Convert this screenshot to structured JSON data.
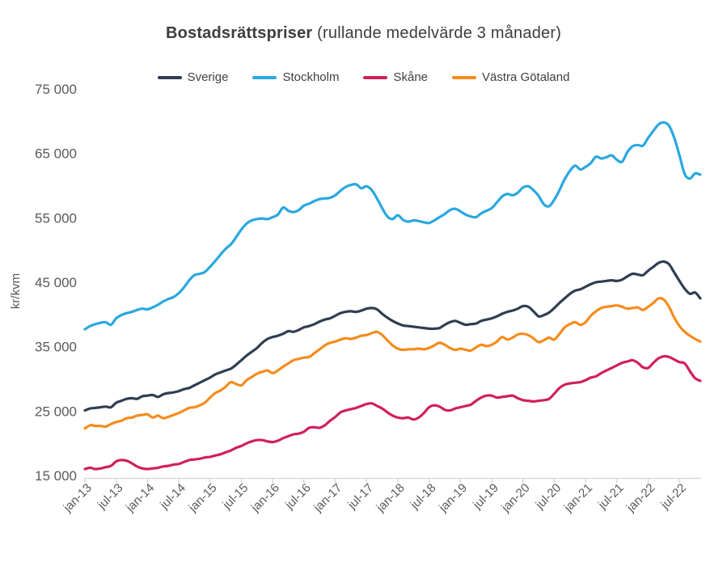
{
  "title": {
    "bold": "Bostadsrättspriser",
    "rest": " (rullande medelvärde 3 månader)"
  },
  "y_axis": {
    "title": "kr/kvm",
    "tick_labels": [
      "15 000",
      "25 000",
      "35 000",
      "45 000",
      "55 000",
      "65 000",
      "75 000"
    ],
    "tick_values": [
      15000,
      25000,
      35000,
      45000,
      55000,
      65000,
      75000
    ]
  },
  "x_axis": {
    "tick_labels": [
      "jan-13",
      "jul-13",
      "jan-14",
      "jul-14",
      "jan-15",
      "jul-15",
      "jan-16",
      "jul-16",
      "jan-17",
      "jul-17",
      "jan-18",
      "jul-18",
      "jan-19",
      "jul-19",
      "jan-20",
      "jul-20",
      "jan-21",
      "jul-21",
      "jan-22",
      "jul-22"
    ],
    "tick_step_months": 6
  },
  "colors": {
    "axis_line": "#d9d9d9",
    "tick_text": "#595959",
    "title_text": "#3d3d3d"
  },
  "chart_data": {
    "type": "line",
    "title": "Bostadsrättspriser (rullande medelvärde 3 månader)",
    "xlabel": "",
    "ylabel": "kr/kvm",
    "ylim": [
      15000,
      75000
    ],
    "x_start": "2013-01",
    "x_end": "2022-11",
    "months_count": 119,
    "legend_position": "top",
    "grid": false,
    "series": [
      {
        "name": "Sverige",
        "color": "#2f3e52",
        "values": [
          25100,
          25400,
          25500,
          25600,
          25700,
          25600,
          26300,
          26600,
          26900,
          27000,
          26900,
          27300,
          27400,
          27500,
          27200,
          27600,
          27800,
          27900,
          28100,
          28400,
          28600,
          29000,
          29400,
          29800,
          30200,
          30700,
          31000,
          31300,
          31600,
          32200,
          32900,
          33600,
          34200,
          34800,
          35600,
          36200,
          36500,
          36700,
          37000,
          37400,
          37300,
          37600,
          38000,
          38200,
          38500,
          38900,
          39200,
          39400,
          39800,
          40200,
          40400,
          40500,
          40400,
          40600,
          40900,
          41000,
          40800,
          40100,
          39500,
          39000,
          38600,
          38300,
          38200,
          38100,
          38000,
          37900,
          37800,
          37800,
          37900,
          38400,
          38800,
          39000,
          38700,
          38400,
          38500,
          38600,
          39000,
          39200,
          39400,
          39700,
          40100,
          40400,
          40600,
          40900,
          41300,
          41200,
          40500,
          39700,
          39900,
          40300,
          41000,
          41800,
          42500,
          43200,
          43700,
          43900,
          44300,
          44700,
          45000,
          45100,
          45200,
          45300,
          45200,
          45400,
          45900,
          46300,
          46200,
          46100,
          46800,
          47400,
          48000,
          48200,
          47800,
          46500,
          45200,
          44000,
          43200,
          43400,
          42500
        ]
      },
      {
        "name": "Stockholm",
        "color": "#29a8e0",
        "values": [
          37700,
          38200,
          38500,
          38700,
          38800,
          38400,
          39400,
          39900,
          40200,
          40400,
          40700,
          40900,
          40800,
          41100,
          41500,
          42000,
          42400,
          42700,
          43300,
          44200,
          45300,
          46100,
          46300,
          46600,
          47400,
          48300,
          49300,
          50200,
          50900,
          52000,
          53200,
          54100,
          54600,
          54800,
          54900,
          54800,
          55100,
          55500,
          56600,
          56100,
          55900,
          56200,
          56900,
          57200,
          57600,
          57900,
          58000,
          58100,
          58500,
          59200,
          59800,
          60100,
          60200,
          59600,
          59900,
          59300,
          58000,
          56500,
          55200,
          54800,
          55400,
          54700,
          54400,
          54600,
          54500,
          54300,
          54200,
          54600,
          55100,
          55600,
          56200,
          56400,
          56000,
          55500,
          55200,
          55100,
          55700,
          56100,
          56500,
          57400,
          58300,
          58700,
          58500,
          58900,
          59700,
          59900,
          59300,
          58400,
          57100,
          56800,
          57800,
          59300,
          61000,
          62300,
          63100,
          62500,
          62900,
          63500,
          64500,
          64200,
          64400,
          64700,
          64000,
          63700,
          65200,
          66100,
          66300,
          66200,
          67400,
          68500,
          69500,
          69800,
          69300,
          67400,
          64700,
          61800,
          61100,
          61900,
          61700
        ]
      },
      {
        "name": "Skåne",
        "color": "#d01f5f",
        "values": [
          16000,
          16200,
          16000,
          16100,
          16300,
          16500,
          17200,
          17400,
          17300,
          16900,
          16400,
          16100,
          16000,
          16100,
          16200,
          16400,
          16500,
          16700,
          16800,
          17100,
          17400,
          17500,
          17600,
          17800,
          17900,
          18100,
          18300,
          18600,
          18900,
          19300,
          19600,
          20000,
          20300,
          20500,
          20500,
          20300,
          20200,
          20400,
          20800,
          21100,
          21400,
          21500,
          21800,
          22400,
          22500,
          22400,
          22800,
          23500,
          24100,
          24800,
          25100,
          25300,
          25500,
          25800,
          26100,
          26200,
          25800,
          25400,
          24800,
          24300,
          24000,
          23900,
          24000,
          23700,
          24000,
          24700,
          25600,
          25900,
          25700,
          25200,
          25100,
          25400,
          25600,
          25800,
          26000,
          26600,
          27100,
          27400,
          27400,
          27100,
          27200,
          27300,
          27400,
          27000,
          26700,
          26600,
          26500,
          26600,
          26700,
          26900,
          27700,
          28600,
          29100,
          29300,
          29400,
          29500,
          29800,
          30200,
          30400,
          30900,
          31300,
          31700,
          32100,
          32500,
          32700,
          32900,
          32500,
          31800,
          31700,
          32500,
          33200,
          33500,
          33400,
          33000,
          32600,
          32400,
          31200,
          30100,
          29700
        ]
      },
      {
        "name": "Västra Götaland",
        "color": "#f68b1d",
        "values": [
          22300,
          22800,
          22700,
          22700,
          22600,
          23000,
          23300,
          23500,
          23900,
          24000,
          24300,
          24400,
          24500,
          24000,
          24300,
          23900,
          24100,
          24400,
          24700,
          25100,
          25500,
          25600,
          25900,
          26300,
          27100,
          27800,
          28200,
          28800,
          29500,
          29200,
          29000,
          29800,
          30300,
          30800,
          31100,
          31300,
          30900,
          31300,
          31900,
          32400,
          32900,
          33100,
          33300,
          33400,
          34000,
          34600,
          35200,
          35600,
          35800,
          36100,
          36300,
          36200,
          36400,
          36700,
          36800,
          37100,
          37300,
          36800,
          36000,
          35200,
          34700,
          34500,
          34600,
          34600,
          34700,
          34600,
          34800,
          35200,
          35600,
          35300,
          34800,
          34500,
          34700,
          34500,
          34400,
          34900,
          35300,
          35100,
          35300,
          35800,
          36500,
          36100,
          36400,
          36900,
          37000,
          36800,
          36300,
          35700,
          36000,
          36400,
          36100,
          37000,
          38000,
          38500,
          38800,
          38400,
          38800,
          39800,
          40500,
          41000,
          41200,
          41300,
          41400,
          41200,
          40900,
          41000,
          41100,
          40700,
          41200,
          41800,
          42500,
          42300,
          41200,
          39500,
          38200,
          37300,
          36700,
          36200,
          35800
        ]
      }
    ]
  }
}
